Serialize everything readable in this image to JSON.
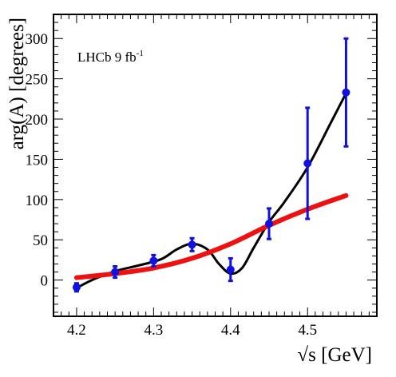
{
  "chart_data": {
    "type": "scatter",
    "annotation": {
      "text": "LHCb 9 fb",
      "superscript": "-1"
    },
    "xlabel": {
      "radical": "√",
      "text": "s [GeV]"
    },
    "ylabel": "arg(A) [degrees]",
    "xlim": [
      4.17,
      4.59
    ],
    "ylim": [
      -45,
      330
    ],
    "xticks": [
      {
        "value": 4.2,
        "label": "4.2"
      },
      {
        "value": 4.3,
        "label": "4.3"
      },
      {
        "value": 4.4,
        "label": "4.4"
      },
      {
        "value": 4.5,
        "label": "4.5"
      }
    ],
    "yticks": [
      {
        "value": 0,
        "label": "0"
      },
      {
        "value": 50,
        "label": "50"
      },
      {
        "value": 100,
        "label": "100"
      },
      {
        "value": 150,
        "label": "150"
      },
      {
        "value": 200,
        "label": "200"
      },
      {
        "value": 250,
        "label": "250"
      },
      {
        "value": 300,
        "label": "300"
      }
    ],
    "grid": false,
    "colors": {
      "points": "#1010e0",
      "black_curve": "#000000",
      "red_curve": "#ee1111"
    },
    "points": {
      "x": [
        4.2,
        4.25,
        4.3,
        4.35,
        4.4,
        4.45,
        4.5,
        4.55
      ],
      "y": [
        -9,
        10,
        24,
        44,
        13,
        70,
        145,
        233
      ],
      "yerr": [
        5,
        7,
        7,
        8,
        14,
        19,
        69,
        67
      ]
    },
    "curves": [
      {
        "style": "black",
        "x": [
          4.2,
          4.22,
          4.25,
          4.28,
          4.31,
          4.33,
          4.35,
          4.37,
          4.385,
          4.4,
          4.415,
          4.43,
          4.45,
          4.47,
          4.5,
          4.53,
          4.55
        ],
        "y": [
          -10,
          0,
          11,
          18,
          26,
          38,
          45,
          38,
          20,
          8,
          15,
          40,
          72,
          97,
          140,
          195,
          232
        ]
      },
      {
        "style": "red",
        "x": [
          4.2,
          4.25,
          4.3,
          4.35,
          4.4,
          4.45,
          4.5,
          4.55
        ],
        "y": [
          3,
          8,
          15,
          27,
          45,
          68,
          88,
          105
        ]
      }
    ]
  }
}
